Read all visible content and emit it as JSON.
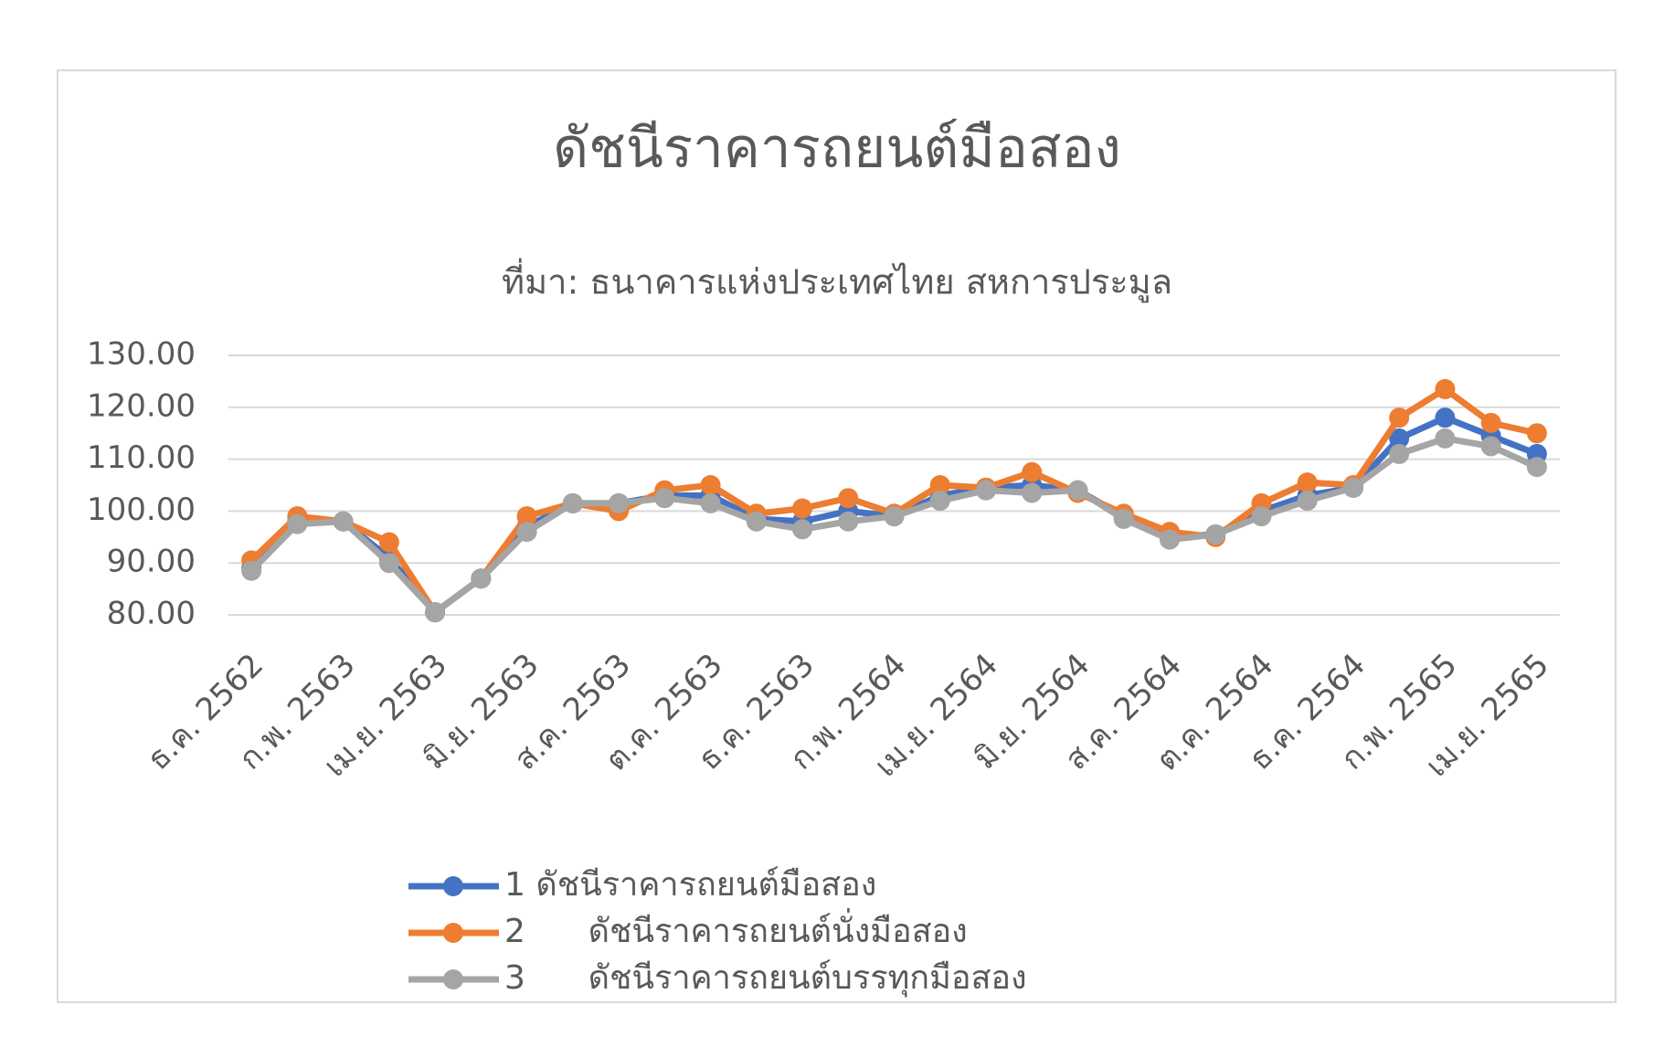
{
  "chart_data": {
    "type": "line",
    "title": "ดัชนีราคารถยนต์มือสอง",
    "subtitle": "ที่มา: ธนาคารแห่งประเทศไทย สหการประมูล",
    "categories": [
      "ธ.ค. 2562",
      null,
      "ก.พ. 2563",
      null,
      "เม.ย. 2563",
      null,
      "มิ.ย. 2563",
      null,
      "ส.ค. 2563",
      null,
      "ต.ค. 2563",
      null,
      "ธ.ค. 2563",
      null,
      "ก.พ. 2564",
      null,
      "เม.ย. 2564",
      null,
      "มิ.ย. 2564",
      null,
      "ส.ค. 2564",
      null,
      "ต.ค. 2564",
      null,
      "ธ.ค. 2564",
      null,
      "ก.พ. 2565",
      null,
      "เม.ย. 2565"
    ],
    "series": [
      {
        "name": "1 ดัชนีราคารถยนต์มือสอง",
        "color": "#4472c4",
        "values": [
          89,
          98,
          98,
          91,
          80.5,
          87,
          97,
          101.5,
          101.5,
          103,
          103,
          98.5,
          98,
          100,
          99,
          103,
          104.5,
          105,
          104,
          99,
          95,
          95.5,
          100,
          103,
          104.5,
          114,
          118,
          114.5,
          111
        ]
      },
      {
        "name": "2      ดัชนีราคารถยนต์นั่งมือสอง",
        "color": "#ed7d31",
        "values": [
          90.5,
          99,
          98,
          94,
          80.5,
          87,
          99,
          101.5,
          100,
          104,
          105,
          99.5,
          100.5,
          102.5,
          99.5,
          105,
          104.5,
          107.5,
          103.5,
          99.5,
          96,
          95,
          101.5,
          105.5,
          105,
          118,
          123.5,
          117,
          115
        ]
      },
      {
        "name": "3      ดัชนีราคารถยนต์บรรทุกมือสอง",
        "color": "#a5a5a5",
        "values": [
          88.5,
          97.5,
          98,
          90,
          80.5,
          87,
          96,
          101.5,
          101.5,
          102.5,
          101.5,
          98,
          96.5,
          98,
          99,
          102,
          104,
          103.5,
          104,
          98.5,
          94.5,
          95.5,
          99,
          102,
          104.5,
          111,
          114,
          112.5,
          108.5
        ]
      }
    ],
    "ylim": [
      80,
      130
    ],
    "yticks": [
      {
        "value": 80,
        "label": "80.00"
      },
      {
        "value": 90,
        "label": "90.00"
      },
      {
        "value": 100,
        "label": "100.00"
      },
      {
        "value": 110,
        "label": "110.00"
      },
      {
        "value": 120,
        "label": "120.00"
      },
      {
        "value": 130,
        "label": "130.00"
      }
    ],
    "grid": true
  }
}
